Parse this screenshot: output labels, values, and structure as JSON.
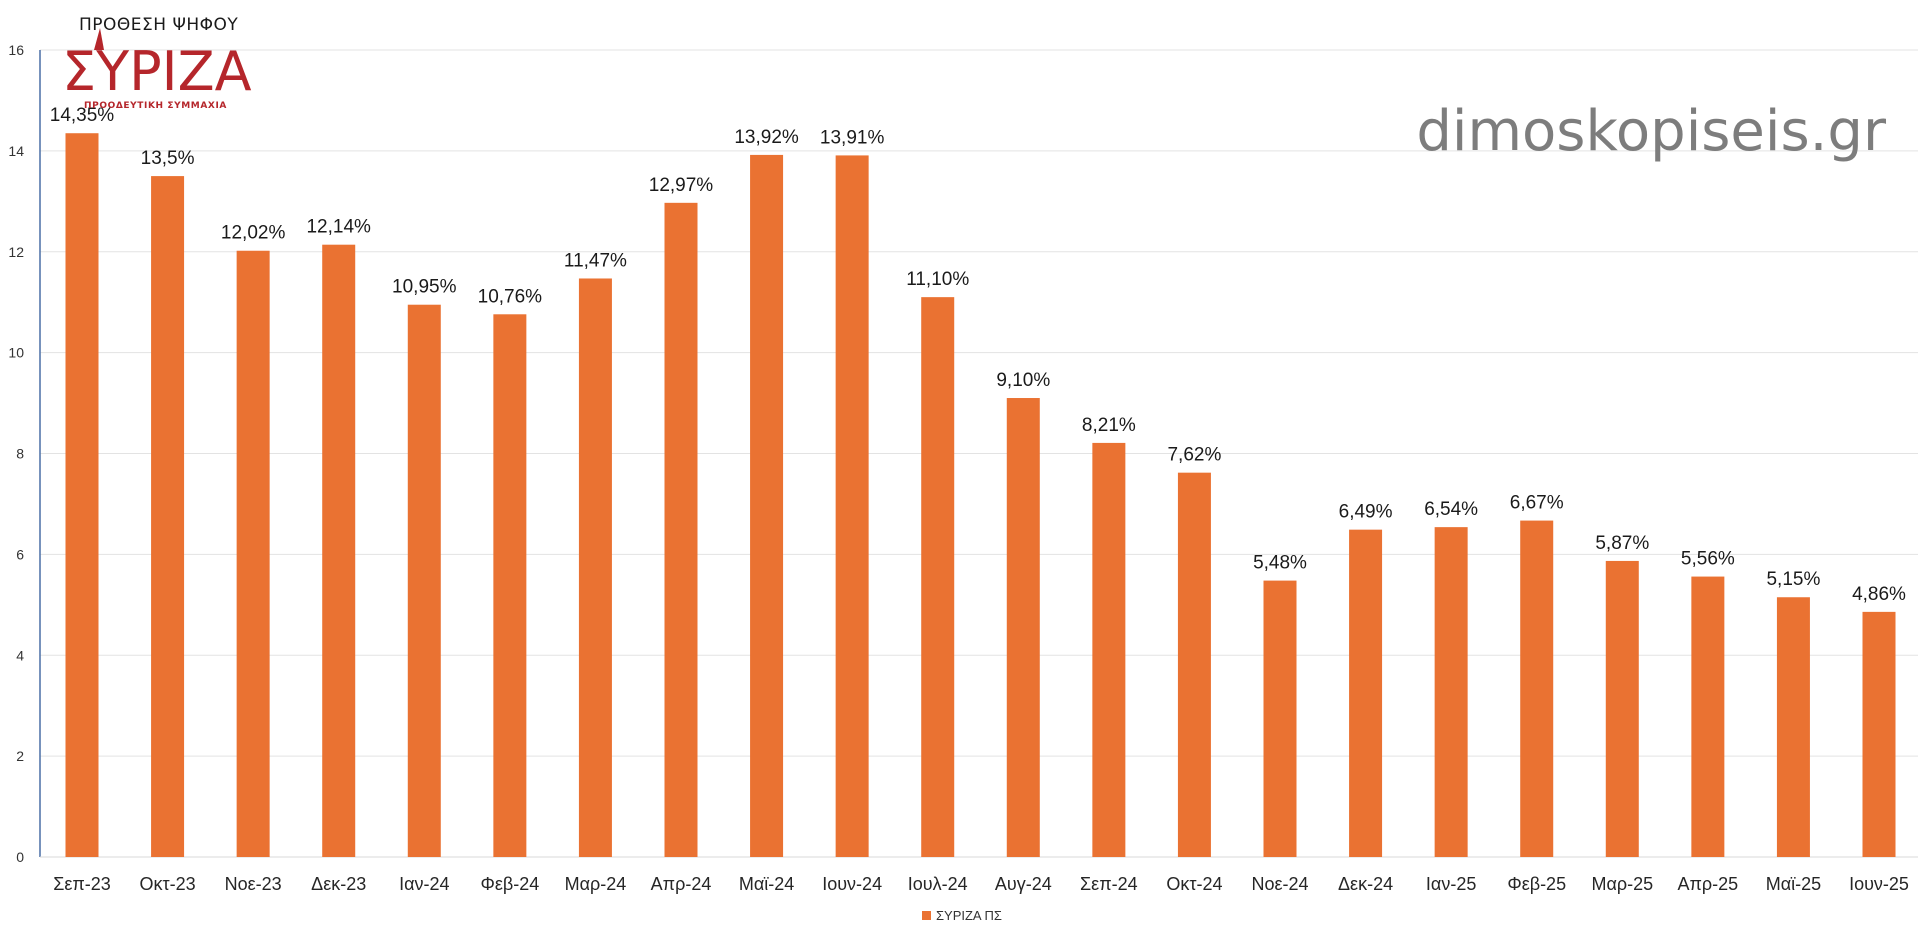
{
  "logo": {
    "caption": "ΠΡΟΘΕΣΗ ΨΗΦΟΥ",
    "wordmark": "ΣΥΡΙΖΑ",
    "tagline": "ΠΡΟΟΔΕΥΤΙΚΗ ΣΥΜΜΑΧΙΑ",
    "color": "#b5262b"
  },
  "watermark": "dimoskopiseis.gr",
  "chart_data": {
    "type": "bar",
    "title": "",
    "xlabel": "",
    "ylabel": "",
    "ylim": [
      0,
      16
    ],
    "yticks": [
      0,
      2,
      4,
      6,
      8,
      10,
      12,
      14,
      16
    ],
    "grid": true,
    "legend_position": "bottom",
    "categories": [
      "Σεπ-23",
      "Οκτ-23",
      "Νοε-23",
      "Δεκ-23",
      "Ιαν-24",
      "Φεβ-24",
      "Μαρ-24",
      "Απρ-24",
      "Μαϊ-24",
      "Ιουν-24",
      "Ιουλ-24",
      "Αυγ-24",
      "Σεπ-24",
      "Οκτ-24",
      "Νοε-24",
      "Δεκ-24",
      "Ιαν-25",
      "Φεβ-25",
      "Μαρ-25",
      "Απρ-25",
      "Μαϊ-25",
      "Ιουν-25"
    ],
    "series": [
      {
        "name": "ΣΥΡΙΖΑ ΠΣ",
        "color": "#ea7232",
        "values": [
          14.35,
          13.5,
          12.02,
          12.14,
          10.95,
          10.76,
          11.47,
          12.97,
          13.92,
          13.91,
          11.1,
          9.1,
          8.21,
          7.62,
          5.48,
          6.49,
          6.54,
          6.67,
          5.87,
          5.56,
          5.15,
          4.86
        ],
        "labels": [
          "14,35%",
          "13,5%",
          "12,02%",
          "12,14%",
          "10,95%",
          "10,76%",
          "11,47%",
          "12,97%",
          "13,92%",
          "13,91%",
          "11,10%",
          "9,10%",
          "8,21%",
          "7,62%",
          "5,48%",
          "6,49%",
          "6,54%",
          "6,67%",
          "5,87%",
          "5,56%",
          "5,15%",
          "4,86%"
        ]
      }
    ]
  }
}
